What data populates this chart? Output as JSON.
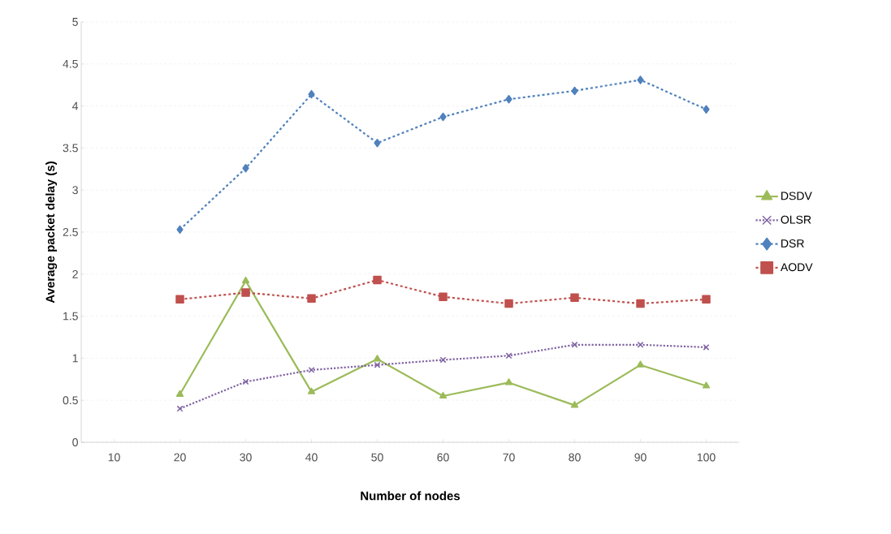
{
  "chart_data": {
    "type": "line",
    "xlabel": "Number of nodes",
    "ylabel": "Average packet delay (s)",
    "categories": [
      "10",
      "20",
      "30",
      "40",
      "50",
      "60",
      "70",
      "80",
      "90",
      "100"
    ],
    "series": [
      {
        "name": "DSDV",
        "color": "#9bbb59",
        "marker": "triangle",
        "line_style": "solid",
        "values": [
          null,
          0.57,
          1.92,
          0.6,
          0.99,
          0.55,
          0.71,
          0.44,
          0.92,
          0.67
        ]
      },
      {
        "name": "OLSR",
        "color": "#8064a2",
        "marker": "cross",
        "line_style": "dotted",
        "values": [
          null,
          0.4,
          0.72,
          0.86,
          0.92,
          0.98,
          1.03,
          1.16,
          1.16,
          1.13
        ]
      },
      {
        "name": "DSR",
        "color": "#4f81bd",
        "marker": "diamond",
        "line_style": "dashed",
        "values": [
          null,
          2.53,
          3.26,
          4.14,
          3.56,
          3.87,
          4.08,
          4.18,
          4.31,
          3.96
        ]
      },
      {
        "name": "AODV",
        "color": "#c0504d",
        "marker": "square",
        "line_style": "dashed",
        "values": [
          null,
          1.7,
          1.78,
          1.71,
          1.93,
          1.73,
          1.65,
          1.72,
          1.65,
          1.7
        ]
      }
    ],
    "ylim": [
      0,
      5
    ],
    "yticks": [
      0,
      0.5,
      1,
      1.5,
      2,
      2.5,
      3,
      3.5,
      4,
      4.5,
      5
    ],
    "grid": "y",
    "legend": "right"
  }
}
